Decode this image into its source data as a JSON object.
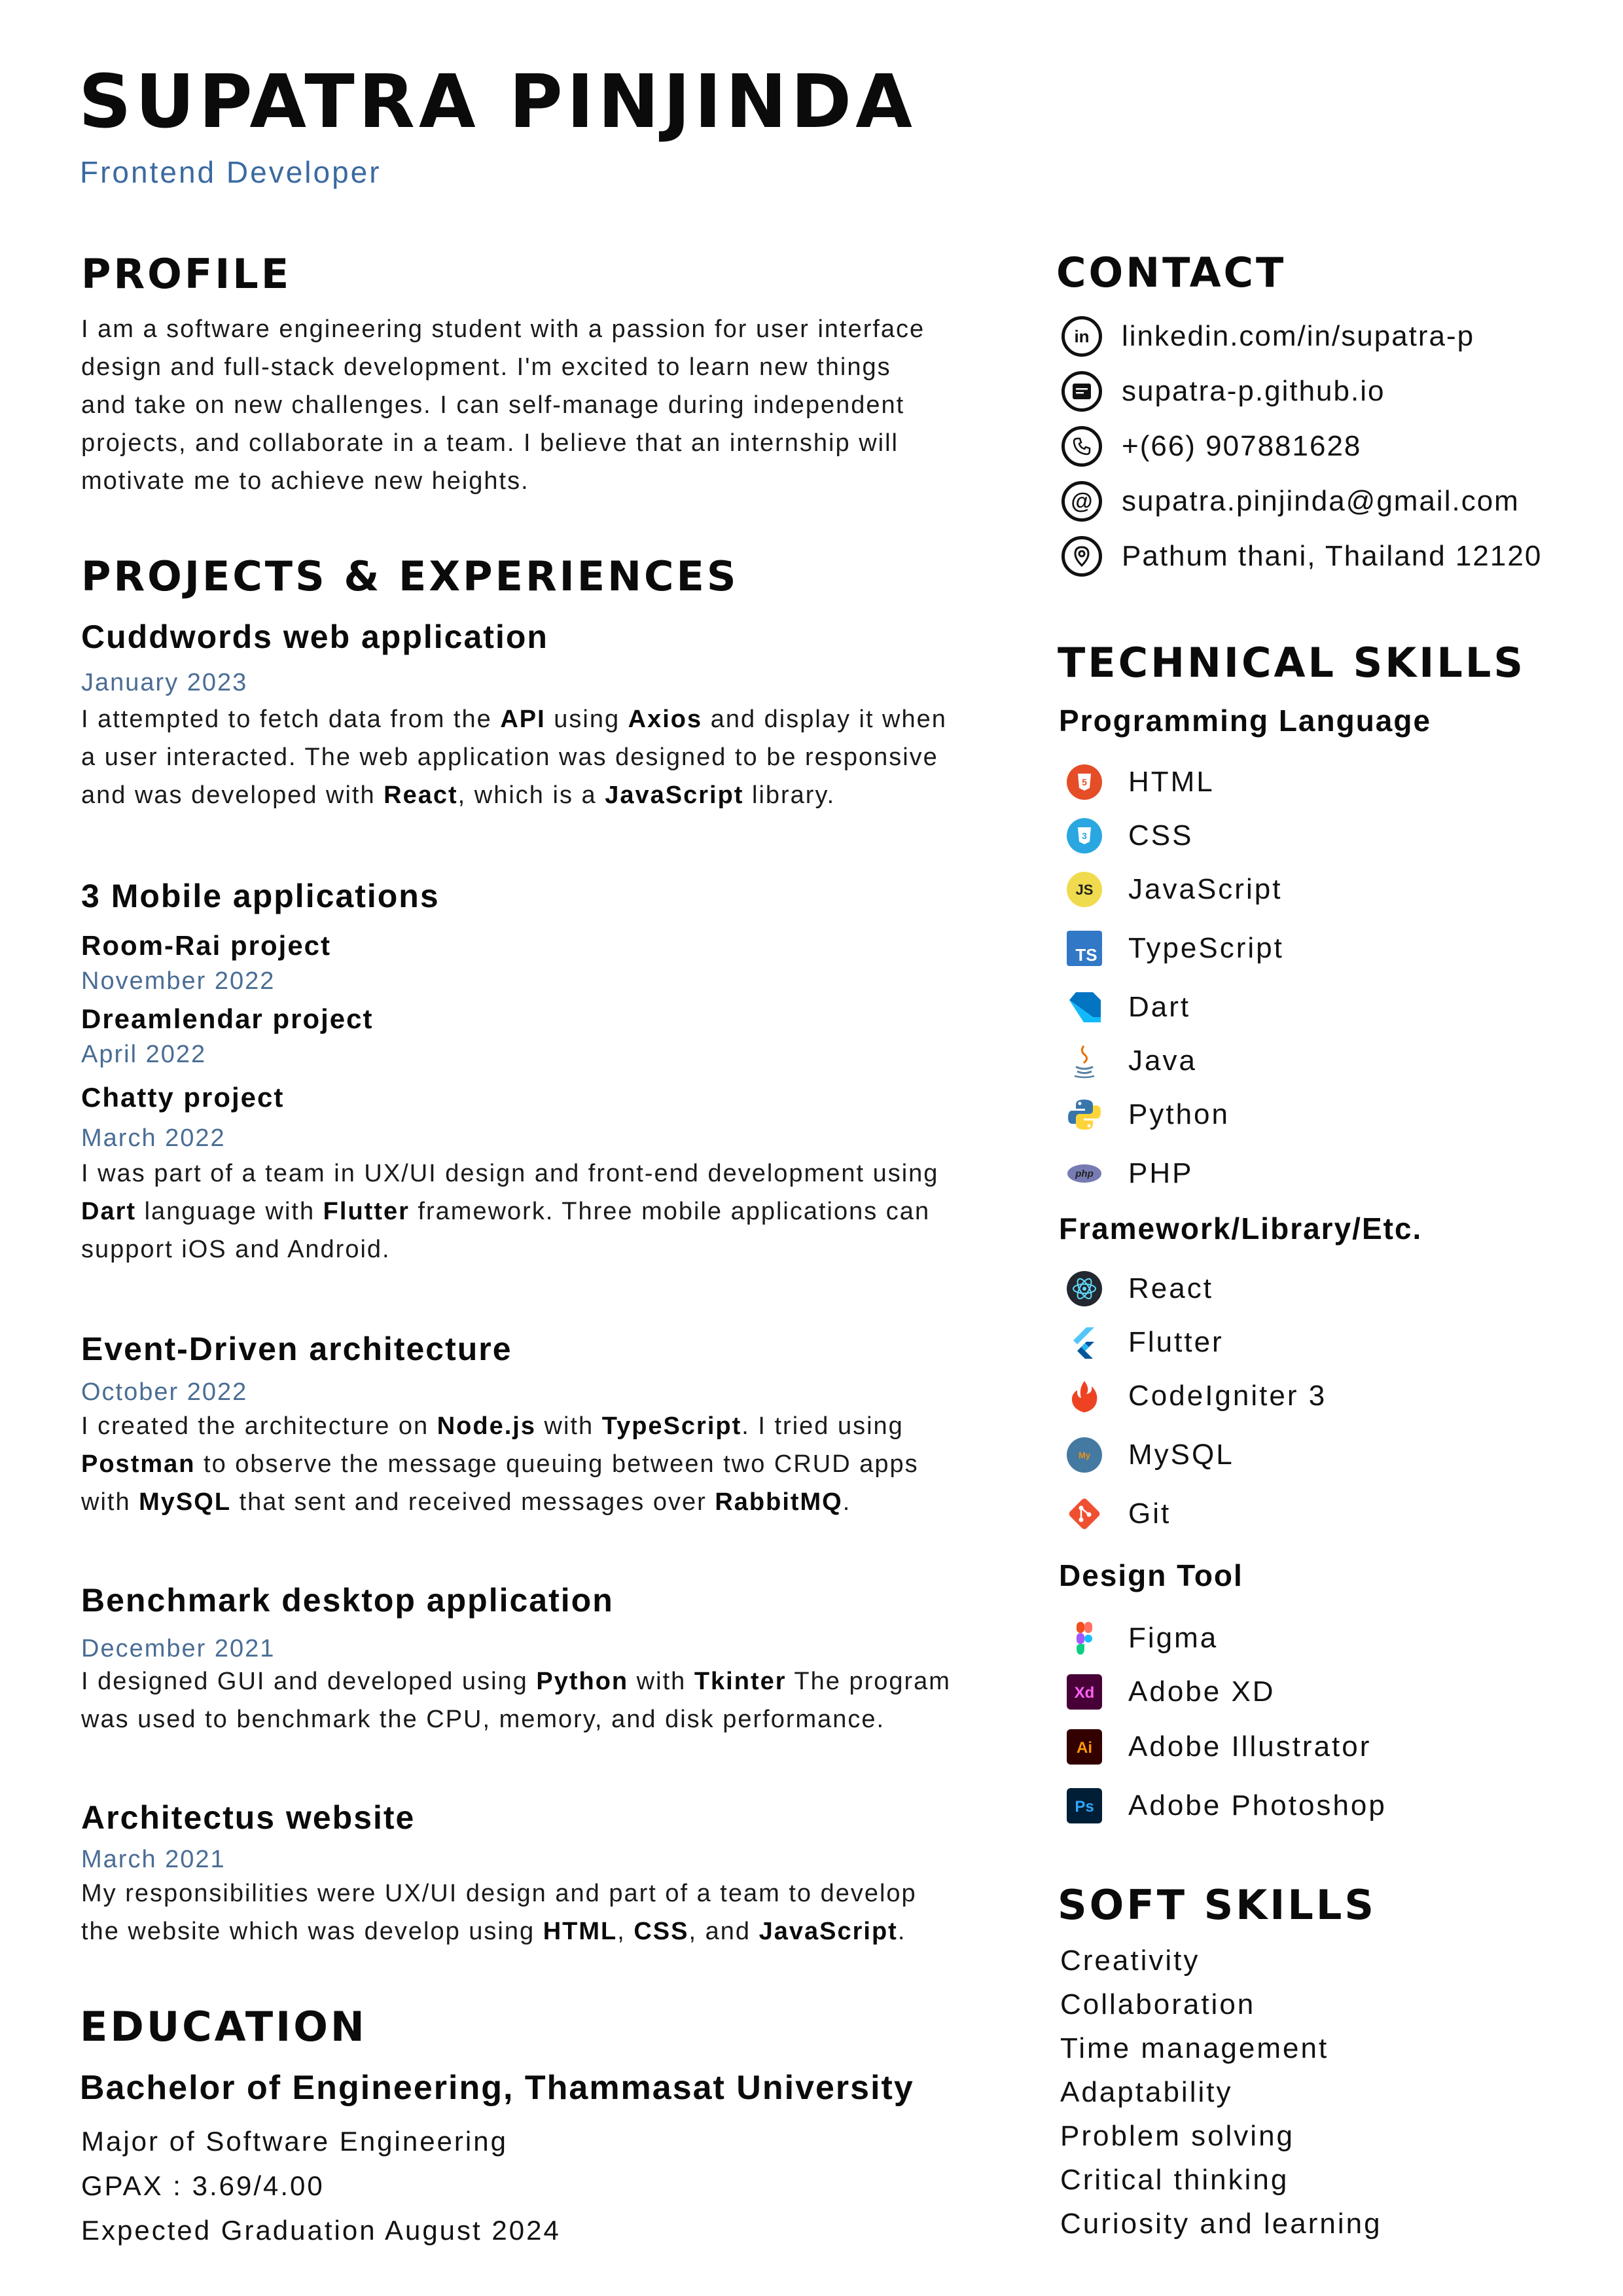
{
  "header": {
    "name": "SUPATRA PINJINDA",
    "role": "Frontend Developer"
  },
  "profile": {
    "title": "PROFILE",
    "lines": [
      "I am a software engineering student with a passion for user interface",
      "design and full-stack development. I'm excited to learn new things",
      "and take on new challenges. I can self-manage during independent",
      "projects, and collaborate in a team. I believe that an internship will",
      "motivate me to achieve new heights."
    ]
  },
  "projects": {
    "title": "PROJECTS & EXPERIENCES",
    "cuddwords": {
      "title": "Cuddwords web application",
      "date": "January 2023",
      "line1": {
        "a": "I attempted to fetch data from the ",
        "b": "API",
        "c": " using ",
        "d": "Axios",
        "e": " and display it when"
      },
      "line2": "a user interacted. The web application was designed to be responsive",
      "line3": {
        "a": "and was developed with ",
        "b": "React",
        "c": ", which is a ",
        "d": "JavaScript",
        "e": " library."
      }
    },
    "mobile": {
      "title": "3 Mobile applications",
      "items": [
        {
          "name": "Room-Rai project",
          "date": "November 2022"
        },
        {
          "name": "Dreamlendar project",
          "date": "April 2022"
        },
        {
          "name": "Chatty project",
          "date": "March 2022"
        }
      ],
      "line1": "I was part of a team in UX/UI design and front-end development using",
      "line2": {
        "a": "Dart",
        "b": " language with ",
        "c": "Flutter",
        "d": " framework. Three mobile applications can"
      },
      "line3": "support iOS and Android."
    },
    "event": {
      "title": "Event-Driven architecture",
      "date": "October 2022",
      "line1": {
        "a": "I created the architecture on ",
        "b": "Node.js",
        "c": " with ",
        "d": "TypeScript",
        "e": ". I tried using"
      },
      "line2": {
        "a": "Postman",
        "b": " to observe the message queuing between two CRUD apps"
      },
      "line3": {
        "a": "with ",
        "b": "MySQL",
        "c": " that sent and received messages over ",
        "d": "RabbitMQ",
        "e": "."
      }
    },
    "benchmark": {
      "title": "Benchmark desktop application",
      "date": "December 2021",
      "line1": {
        "a": "I designed GUI and developed using ",
        "b": "Python",
        "c": " with ",
        "d": "Tkinter",
        "e": " The program"
      },
      "line2": "was used to benchmark the CPU, memory, and disk performance."
    },
    "architectus": {
      "title": "Architectus website",
      "date": "March 2021",
      "line1": "My responsibilities were UX/UI design and part of a team to develop",
      "line2": {
        "a": "the website which was develop using ",
        "b": "HTML",
        "c": ", ",
        "d": "CSS",
        "e": ", and ",
        "f": "JavaScript",
        "g": "."
      }
    }
  },
  "education": {
    "title": "EDUCATION",
    "degree": "Bachelor of Engineering, Thammasat University",
    "major": "Major of Software Engineering",
    "gpax": "GPAX :  3.69/4.00",
    "graduation": "Expected Graduation August 2024"
  },
  "contact": {
    "title": "CONTACT",
    "items": [
      {
        "icon": "linkedin-icon",
        "text": "linkedin.com/in/supatra-p"
      },
      {
        "icon": "website-icon",
        "text": "supatra-p.github.io"
      },
      {
        "icon": "phone-icon",
        "text": "+(66) 907881628"
      },
      {
        "icon": "email-icon",
        "text": "supatra.pinjinda@gmail.com"
      },
      {
        "icon": "location-icon",
        "text": "Pathum thani, Thailand 12120"
      }
    ]
  },
  "technical": {
    "title": "TECHNICAL SKILLS",
    "programming_title": "Programming Language",
    "programming": [
      "HTML",
      "CSS",
      "JavaScript",
      "TypeScript",
      "Dart",
      "Java",
      "Python",
      "PHP"
    ],
    "framework_title": "Framework/Library/Etc.",
    "frameworks": [
      "React",
      "Flutter",
      "CodeIgniter 3",
      "MySQL",
      "Git"
    ],
    "design_title": "Design Tool",
    "design": [
      "Figma",
      "Adobe XD",
      "Adobe Illustrator",
      "Adobe Photoshop"
    ]
  },
  "soft_skills": {
    "title": "SOFT SKILLS",
    "items": [
      "Creativity",
      "Collaboration",
      "Time management",
      "Adaptability",
      "Problem solving",
      "Critical thinking",
      "Curiosity and learning"
    ]
  },
  "colors": {
    "role": "#3b6aa0",
    "date": "#4a6d94",
    "html": "#e44d26",
    "css": "#2aa7e0",
    "js": "#f0db4f",
    "ts": "#3178c6",
    "dart": "#0175c2",
    "xd": "#470137",
    "ai": "#330000",
    "ps": "#001e36"
  }
}
